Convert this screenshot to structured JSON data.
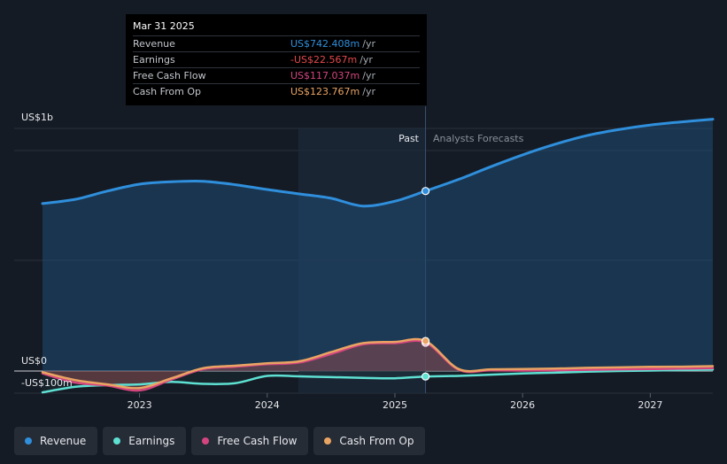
{
  "chart_data": {
    "type": "line",
    "ylabel_top": "US$1b",
    "ylabel_zero": "US$0",
    "ylabel_bottom": "-US$100m",
    "ylim": [
      -100,
      1000
    ],
    "x_ticks": [
      "2023",
      "2024",
      "2025",
      "2026",
      "2027"
    ],
    "past_label": "Past",
    "forecast_label": "Analysts Forecasts",
    "divider_date": 2025.24,
    "series": [
      {
        "name": "Revenue",
        "color": "#2f8fdc",
        "points": [
          [
            2022.24,
            690
          ],
          [
            2022.5,
            708
          ],
          [
            2022.75,
            742
          ],
          [
            2023.0,
            770
          ],
          [
            2023.25,
            780
          ],
          [
            2023.5,
            782
          ],
          [
            2023.75,
            768
          ],
          [
            2024.0,
            748
          ],
          [
            2024.25,
            730
          ],
          [
            2024.5,
            712
          ],
          [
            2024.75,
            680
          ],
          [
            2025.0,
            700
          ],
          [
            2025.24,
            742
          ],
          [
            2025.5,
            790
          ],
          [
            2025.75,
            842
          ],
          [
            2026.0,
            891
          ],
          [
            2026.25,
            934
          ],
          [
            2026.5,
            970
          ],
          [
            2026.75,
            995
          ],
          [
            2027.0,
            1014
          ],
          [
            2027.25,
            1027
          ],
          [
            2027.49,
            1038
          ]
        ]
      },
      {
        "name": "Earnings",
        "color": "#5ee0d2",
        "points": [
          [
            2022.24,
            -88
          ],
          [
            2022.5,
            -65
          ],
          [
            2022.75,
            -58
          ],
          [
            2023.0,
            -55
          ],
          [
            2023.25,
            -45
          ],
          [
            2023.5,
            -53
          ],
          [
            2023.75,
            -50
          ],
          [
            2024.0,
            -20
          ],
          [
            2024.25,
            -22
          ],
          [
            2024.5,
            -25
          ],
          [
            2024.75,
            -28
          ],
          [
            2025.0,
            -30
          ],
          [
            2025.24,
            -22.6
          ],
          [
            2025.5,
            -20
          ],
          [
            2025.75,
            -15
          ],
          [
            2026.0,
            -10
          ],
          [
            2026.25,
            -7
          ],
          [
            2026.5,
            -3
          ],
          [
            2026.75,
            0
          ],
          [
            2027.0,
            2
          ],
          [
            2027.25,
            4
          ],
          [
            2027.49,
            6
          ]
        ]
      },
      {
        "name": "Free Cash Flow",
        "color": "#d4457f",
        "points": [
          [
            2022.24,
            -10
          ],
          [
            2022.5,
            -48
          ],
          [
            2022.75,
            -60
          ],
          [
            2023.0,
            -80
          ],
          [
            2023.25,
            -35
          ],
          [
            2023.5,
            8
          ],
          [
            2023.75,
            18
          ],
          [
            2024.0,
            28
          ],
          [
            2024.25,
            35
          ],
          [
            2024.5,
            70
          ],
          [
            2024.75,
            110
          ],
          [
            2025.0,
            115
          ],
          [
            2025.24,
            117.0
          ],
          [
            2025.5,
            5
          ],
          [
            2025.75,
            3
          ],
          [
            2026.0,
            2
          ],
          [
            2026.25,
            3
          ],
          [
            2026.5,
            5
          ],
          [
            2026.75,
            7
          ],
          [
            2027.0,
            8
          ],
          [
            2027.25,
            10
          ],
          [
            2027.49,
            12
          ]
        ]
      },
      {
        "name": "Cash From Op",
        "color": "#e9a463",
        "points": [
          [
            2022.24,
            -5
          ],
          [
            2022.5,
            -38
          ],
          [
            2022.75,
            -55
          ],
          [
            2023.0,
            -70
          ],
          [
            2023.25,
            -30
          ],
          [
            2023.5,
            12
          ],
          [
            2023.75,
            22
          ],
          [
            2024.0,
            32
          ],
          [
            2024.25,
            40
          ],
          [
            2024.5,
            78
          ],
          [
            2024.75,
            115
          ],
          [
            2025.0,
            120
          ],
          [
            2025.24,
            123.8
          ],
          [
            2025.5,
            8
          ],
          [
            2025.75,
            7
          ],
          [
            2026.0,
            8
          ],
          [
            2026.25,
            10
          ],
          [
            2026.5,
            13
          ],
          [
            2026.75,
            15
          ],
          [
            2027.0,
            17
          ],
          [
            2027.25,
            18
          ],
          [
            2027.49,
            20
          ]
        ]
      }
    ]
  },
  "tooltip": {
    "date": "Mar 31 2025",
    "rows": [
      {
        "label": "Revenue",
        "value": "US$742.408m",
        "unit": "/yr",
        "color": "#2f8fdc"
      },
      {
        "label": "Earnings",
        "value": "-US$22.567m",
        "unit": "/yr",
        "color": "#e5484d"
      },
      {
        "label": "Free Cash Flow",
        "value": "US$117.037m",
        "unit": "/yr",
        "color": "#d4457f"
      },
      {
        "label": "Cash From Op",
        "value": "US$123.767m",
        "unit": "/yr",
        "color": "#e9a463"
      }
    ]
  },
  "legend": [
    {
      "label": "Revenue",
      "color": "#2f8fdc"
    },
    {
      "label": "Earnings",
      "color": "#5ee0d2"
    },
    {
      "label": "Free Cash Flow",
      "color": "#d4457f"
    },
    {
      "label": "Cash From Op",
      "color": "#e9a463"
    }
  ]
}
